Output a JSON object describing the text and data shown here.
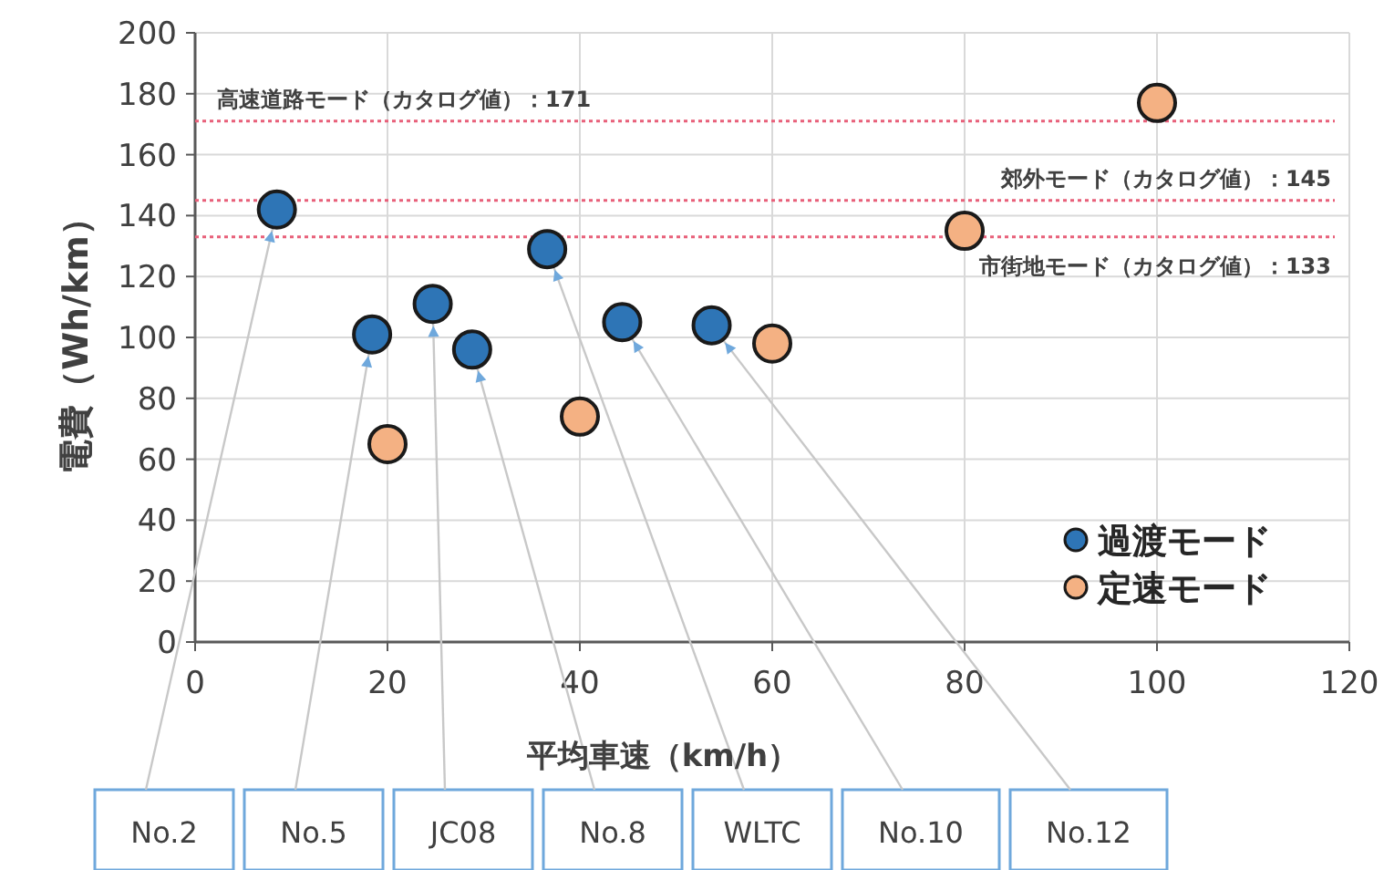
{
  "chart_data": {
    "type": "scatter",
    "xlabel": "平均車速（km/h）",
    "ylabel": "電費（Wh/km）",
    "xlim": [
      0,
      120
    ],
    "xticks": [
      0,
      20,
      40,
      60,
      80,
      100,
      120
    ],
    "ylim": [
      0,
      200
    ],
    "yticks": [
      0,
      20,
      40,
      60,
      80,
      100,
      120,
      140,
      160,
      180,
      200
    ],
    "grid": true,
    "legend": "bottom right",
    "marker": "circle",
    "series": [
      {
        "name": "過渡モード",
        "color": "#2e75b6",
        "x": [
          8.5,
          18.4,
          24.7,
          28.8,
          36.6,
          44.4,
          53.7
        ],
        "values": [
          142,
          101,
          111,
          96,
          129,
          105,
          104
        ]
      },
      {
        "name": "定速モード",
        "color": "#f4b183",
        "x": [
          20,
          40,
          60,
          80,
          100
        ],
        "values": [
          65,
          74,
          98,
          135,
          177
        ]
      }
    ],
    "ref_lines": [
      {
        "axis": "y",
        "value": 171,
        "label": "高速道路モード（カタログ値）：171",
        "color": "#e8607a",
        "line_style": "dotted"
      },
      {
        "axis": "y",
        "value": 145,
        "label": "郊外モード（カタログ値）：145",
        "color": "#e8607a",
        "line_style": "dotted"
      },
      {
        "axis": "y",
        "value": 133,
        "label": "市街地モード（カタログ値）：133",
        "color": "#e8607a",
        "line_style": "dotted"
      }
    ],
    "annotations": [
      {
        "text": "No.2",
        "x": 8.5,
        "y": 142
      },
      {
        "text": "No.5",
        "x": 18.4,
        "y": 101
      },
      {
        "text": "JC08",
        "x": 24.7,
        "y": 111
      },
      {
        "text": "No.8",
        "x": 28.8,
        "y": 96
      },
      {
        "text": "WLTC",
        "x": 36.6,
        "y": 129
      },
      {
        "text": "No.10",
        "x": 44.4,
        "y": 105
      },
      {
        "text": "No.12",
        "x": 53.7,
        "y": 104
      }
    ]
  }
}
